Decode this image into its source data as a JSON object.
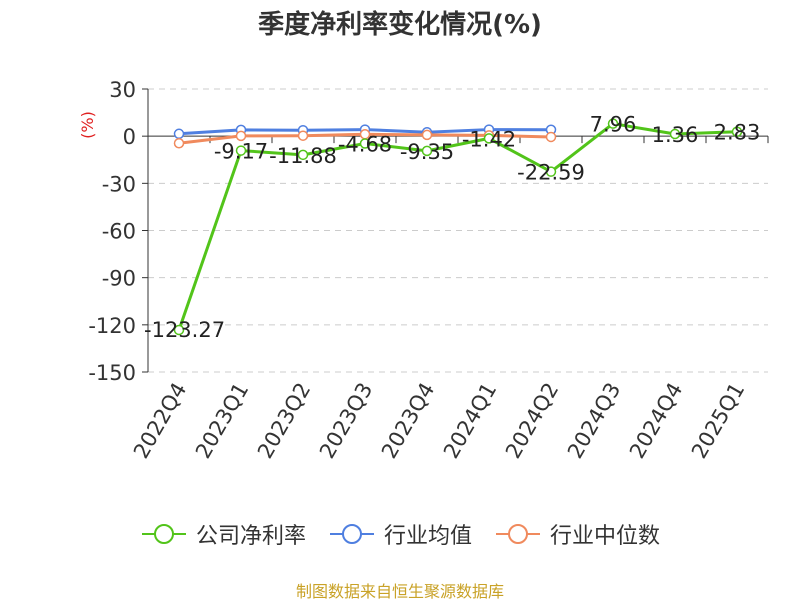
{
  "chart_data": {
    "type": "line",
    "title": "季度净利率变化情况(%)",
    "ylabel": "(%)",
    "categories": [
      "2022Q4",
      "2023Q1",
      "2023Q2",
      "2023Q3",
      "2023Q4",
      "2024Q1",
      "2024Q2",
      "2024Q3",
      "2024Q4",
      "2025Q1"
    ],
    "ylim": [
      -150,
      30
    ],
    "yticks": [
      30,
      0,
      -30,
      -60,
      -90,
      -120,
      -150
    ],
    "grid": true,
    "legend_position": "bottom",
    "series": [
      {
        "name": "公司净利率",
        "color": "#52c41a",
        "values": [
          -123.27,
          -9.17,
          -11.88,
          -4.68,
          -9.35,
          -1.42,
          -22.59,
          7.96,
          1.36,
          2.83
        ],
        "labels": [
          "-123.27",
          "-9.17",
          "-11.88",
          "-4.68",
          "-9.35",
          "-1.42",
          "-22.59",
          "7.96",
          "1.36",
          "2.83"
        ]
      },
      {
        "name": "行业均值",
        "color": "#4f7fe0",
        "values": [
          1.5,
          4.0,
          3.8,
          4.2,
          2.5,
          4.2,
          4.1,
          null,
          null,
          null
        ]
      },
      {
        "name": "行业中位数",
        "color": "#f08a5d",
        "values": [
          -4.5,
          0.2,
          0.3,
          1.2,
          0.8,
          0.5,
          -0.5,
          null,
          null,
          null
        ]
      }
    ]
  },
  "source": "制图数据来自恒生聚源数据库"
}
